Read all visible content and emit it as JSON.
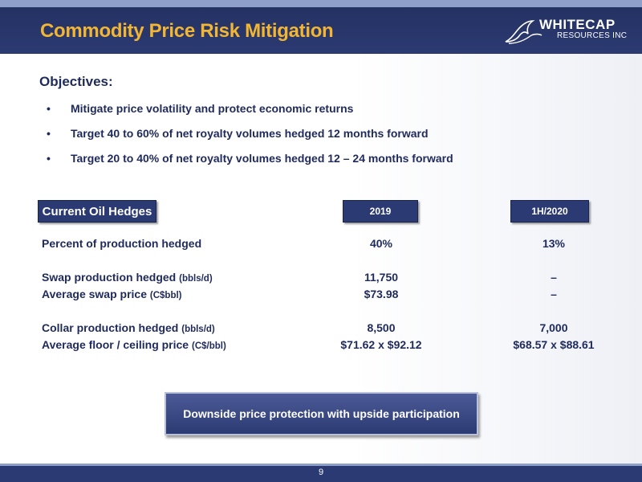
{
  "header": {
    "title": "Commodity Price Risk Mitigation",
    "logo": {
      "line1": "WHITECAP",
      "line2": "RESOURCES INC"
    }
  },
  "objectives": {
    "heading": "Objectives:",
    "bullet": "•",
    "items": [
      "Mitigate price volatility and protect economic returns",
      "Target 40 to 60% of net royalty volumes hedged 12 months forward",
      "Target 20 to 40% of net royalty volumes hedged 12 – 24 months forward"
    ]
  },
  "hedges": {
    "section_label": "Current Oil Hedges",
    "columns": [
      "2019",
      "1H/2020"
    ],
    "rows": [
      {
        "label": "Percent of production hedged",
        "unit": "",
        "values": [
          "40%",
          "13%"
        ]
      },
      {
        "label": "Swap production hedged",
        "unit": "(bbls/d)",
        "values": [
          "11,750",
          "–"
        ]
      },
      {
        "label": "Average swap price",
        "unit": "(C$bbl)",
        "values": [
          "$73.98",
          "–"
        ]
      },
      {
        "label": "Collar production hedged",
        "unit": "(bbls/d)",
        "values": [
          "8,500",
          "7,000"
        ]
      },
      {
        "label": "Average floor / ceiling price",
        "unit": "(C$/bbl)",
        "values": [
          "$71.62 x $92.12",
          "$68.57 x $88.61"
        ]
      }
    ]
  },
  "callout": "Downside price protection with upside participation",
  "footer": {
    "page_number": "9"
  },
  "colors": {
    "navy": "#2b3a72",
    "title_gold": "#f2b632",
    "text_navy": "#1f2a5c",
    "strip": "#8e9fc9"
  }
}
